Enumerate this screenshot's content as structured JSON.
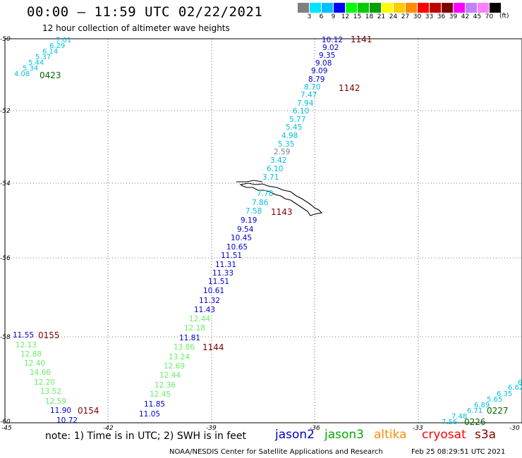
{
  "header": {
    "title": "00:00 – 11:59 UTC 02/22/2021",
    "subtitle": "12 hour collection of altimeter wave heights"
  },
  "legend": {
    "colors": [
      "#808080",
      "#00e5ff",
      "#00c0ff",
      "#0000ff",
      "#00ff00",
      "#00cc00",
      "#00a000",
      "#ffff00",
      "#ffcc00",
      "#ff8c00",
      "#ff0000",
      "#c00000",
      "#800000",
      "#ff00ff",
      "#c080ff",
      "#ff80ff",
      "#000000"
    ],
    "labels": [
      "3",
      "6",
      "9",
      "12",
      "15",
      "18",
      "21",
      "24",
      "27",
      "30",
      "33",
      "36",
      "39",
      "42",
      "45",
      "70"
    ],
    "unit": "(ft)"
  },
  "axes": {
    "lat_labels": [
      "-50",
      "-52",
      "-54",
      "-56",
      "-58",
      "-60"
    ],
    "lon_labels": [
      "-45",
      "-42",
      "-39",
      "-36",
      "-33",
      "-30"
    ]
  },
  "colors": {
    "jason2": "#0000cc",
    "jason3": "#00aa00",
    "altika": "#ff8c00",
    "cryosat": "#ff0000",
    "s3a": "#800000",
    "light_green": "#66ee66",
    "cyan": "#00c0e0",
    "gray": "#808080",
    "time_dark_red": "#800000",
    "time_green": "#006600"
  },
  "tracks": {
    "top_left": [
      "7.01",
      "6.29",
      "6.14",
      "5.37",
      "5.44",
      "5.34",
      "4.08"
    ],
    "main": [
      "10.12",
      "9.02",
      "9.35",
      "9.08",
      "9.09",
      "8.79",
      "8.70",
      "7.47",
      "7.94",
      "6.10",
      "5.77",
      "5.45",
      "4.98",
      "5.35",
      "2.59",
      "3.42",
      "6.10",
      "3.71",
      "7.78",
      "7.86",
      "7.58",
      "9.19",
      "9.54",
      "10.45",
      "10.65",
      "11.51",
      "11.31",
      "11.33",
      "11.51",
      "10.61",
      "11.32",
      "11.43",
      "12.44",
      "12.18",
      "11.81",
      "13.86",
      "13.24",
      "12.69",
      "12.44",
      "12.36",
      "12.45",
      "11.85",
      "11.05"
    ],
    "left": [
      "11.55",
      "12.13",
      "12.88",
      "12.40",
      "14.66",
      "12.20",
      "13.52",
      "12.59",
      "11.90",
      "10.72"
    ],
    "bottom_right": [
      "6",
      "6.62",
      "6.35",
      "5.65",
      "6.89",
      "6.71",
      "7.48",
      "7.56"
    ]
  },
  "time_labels": {
    "t1141": "1141",
    "t1142": "1142",
    "t1143": "1143",
    "t1144": "1144",
    "t0423": "0423",
    "t0155": "0155",
    "t0154": "0154",
    "t0227": "0227",
    "t0226": "0226"
  },
  "footer": {
    "note": "note:  1) Time is in UTC; 2) SWH is in feet",
    "satellites": [
      "jason2",
      "jason3",
      "altika",
      "cryosat",
      "s3a"
    ],
    "credit": "NOAA/NESDIS Center for Satellite Applications and Research",
    "generated": "Feb 25 08:29:51 UTC 2021"
  }
}
